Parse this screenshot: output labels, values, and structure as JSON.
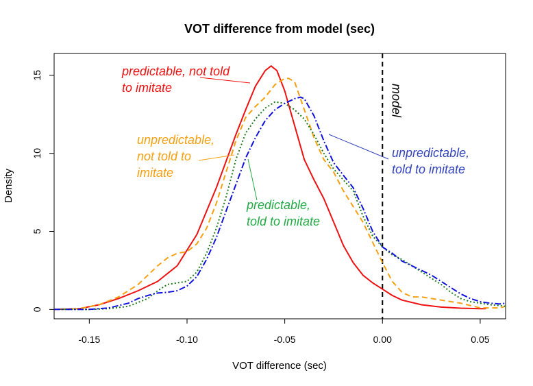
{
  "chart_data": {
    "type": "line",
    "title": "VOT difference from model (sec)",
    "xlabel": "VOT difference (sec)",
    "ylabel": "Density",
    "xlim": [
      -0.168,
      0.063
    ],
    "ylim": [
      -0.6,
      16.4
    ],
    "xticks": [
      -0.15,
      -0.1,
      -0.05,
      0.0,
      0.05
    ],
    "xtick_labels": [
      "-0.15",
      "-0.10",
      "-0.05",
      "0.00",
      "0.05"
    ],
    "yticks": [
      0,
      5,
      10,
      15
    ],
    "ytick_labels": [
      "0",
      "5",
      "10",
      "15"
    ],
    "grid": false,
    "reference_line": {
      "x": 0.0,
      "label": "model",
      "color": "#000000"
    },
    "series": [
      {
        "name": "predictable, not told to imitate",
        "color": "#ee1111",
        "dash": "",
        "label_lines": [
          "predictable,  not told",
          "to imitate"
        ],
        "x": [
          -0.168,
          -0.155,
          -0.145,
          -0.135,
          -0.125,
          -0.115,
          -0.105,
          -0.095,
          -0.085,
          -0.075,
          -0.07,
          -0.065,
          -0.06,
          -0.057,
          -0.054,
          -0.05,
          -0.045,
          -0.04,
          -0.035,
          -0.03,
          -0.025,
          -0.02,
          -0.015,
          -0.01,
          -0.005,
          0.0,
          0.005,
          0.01,
          0.02,
          0.03,
          0.04,
          0.05,
          0.053
        ],
        "y": [
          0.0,
          0.05,
          0.3,
          0.7,
          1.2,
          1.8,
          2.8,
          4.8,
          7.8,
          11.2,
          12.8,
          14.3,
          15.3,
          15.6,
          15.3,
          14.0,
          11.8,
          9.6,
          8.3,
          7.1,
          5.6,
          4.1,
          3.0,
          2.2,
          1.7,
          1.3,
          0.9,
          0.6,
          0.3,
          0.15,
          0.08,
          0.05,
          0.05
        ]
      },
      {
        "name": "unpredictable, not told to imitate",
        "color": "#f5a010",
        "dash": "8,5",
        "label_lines": [
          "unpredictable,",
          "not told to",
          "imitate"
        ],
        "x": [
          -0.168,
          -0.155,
          -0.145,
          -0.135,
          -0.125,
          -0.115,
          -0.11,
          -0.105,
          -0.1,
          -0.095,
          -0.09,
          -0.085,
          -0.08,
          -0.075,
          -0.07,
          -0.065,
          -0.06,
          -0.055,
          -0.05,
          -0.048,
          -0.045,
          -0.04,
          -0.035,
          -0.03,
          -0.025,
          -0.02,
          -0.015,
          -0.01,
          -0.005,
          0.0,
          0.005,
          0.01,
          0.015,
          0.02,
          0.025,
          0.03,
          0.035,
          0.04,
          0.045,
          0.05,
          0.055,
          0.06,
          0.063
        ],
        "y": [
          0.0,
          0.05,
          0.3,
          0.8,
          1.6,
          2.8,
          3.3,
          3.6,
          3.7,
          4.2,
          5.2,
          6.8,
          8.8,
          10.8,
          12.3,
          13.0,
          13.6,
          14.4,
          14.8,
          14.8,
          14.6,
          12.8,
          11.0,
          9.6,
          8.8,
          7.6,
          6.6,
          5.6,
          4.3,
          3.0,
          1.8,
          1.1,
          0.8,
          0.8,
          0.7,
          0.6,
          0.5,
          0.4,
          0.25,
          0.1,
          0.1,
          0.1,
          0.2
        ]
      },
      {
        "name": "predictable, told to imitate",
        "color": "#1a7a1a",
        "dash": "2,3",
        "label_lines": [
          "predictable,",
          "told to imitate"
        ],
        "label_color": "#22aa44",
        "x": [
          -0.168,
          -0.15,
          -0.14,
          -0.13,
          -0.12,
          -0.115,
          -0.11,
          -0.105,
          -0.1,
          -0.095,
          -0.09,
          -0.085,
          -0.08,
          -0.075,
          -0.07,
          -0.065,
          -0.06,
          -0.055,
          -0.05,
          -0.045,
          -0.04,
          -0.035,
          -0.03,
          -0.025,
          -0.02,
          -0.015,
          -0.01,
          -0.005,
          0.0,
          0.005,
          0.01,
          0.015,
          0.02,
          0.025,
          0.03,
          0.035,
          0.04,
          0.045,
          0.05,
          0.055,
          0.06,
          0.063
        ],
        "y": [
          0.0,
          0.0,
          0.05,
          0.2,
          0.7,
          1.2,
          1.6,
          1.7,
          1.8,
          2.4,
          3.6,
          5.2,
          7.2,
          9.6,
          11.3,
          12.2,
          12.9,
          13.3,
          13.2,
          12.8,
          12.2,
          11.2,
          10.0,
          9.0,
          8.3,
          7.6,
          6.0,
          4.7,
          4.0,
          3.5,
          3.2,
          2.8,
          2.4,
          2.0,
          1.6,
          1.1,
          0.7,
          0.5,
          0.4,
          0.3,
          0.25,
          0.2
        ]
      },
      {
        "name": "unpredictable, told to imitate",
        "color": "#1111dd",
        "dash": "9,3,2,3",
        "label_lines": [
          "unpredictable,",
          "told to imitate"
        ],
        "label_color": "#3344bb",
        "x": [
          -0.168,
          -0.15,
          -0.14,
          -0.13,
          -0.125,
          -0.12,
          -0.115,
          -0.11,
          -0.105,
          -0.1,
          -0.095,
          -0.09,
          -0.085,
          -0.08,
          -0.075,
          -0.07,
          -0.065,
          -0.06,
          -0.055,
          -0.05,
          -0.045,
          -0.042,
          -0.04,
          -0.035,
          -0.03,
          -0.025,
          -0.02,
          -0.015,
          -0.01,
          -0.005,
          0.0,
          0.005,
          0.01,
          0.015,
          0.02,
          0.025,
          0.03,
          0.035,
          0.04,
          0.045,
          0.05,
          0.055,
          0.06,
          0.063
        ],
        "y": [
          0.0,
          0.0,
          0.1,
          0.4,
          0.7,
          0.9,
          1.05,
          1.1,
          1.2,
          1.5,
          2.1,
          3.2,
          4.6,
          6.3,
          8.0,
          9.7,
          11.0,
          12.1,
          12.8,
          13.2,
          13.5,
          13.6,
          13.5,
          12.4,
          10.8,
          9.4,
          8.6,
          7.8,
          6.5,
          5.0,
          4.0,
          3.6,
          3.1,
          2.8,
          2.5,
          2.2,
          1.8,
          1.4,
          1.0,
          0.7,
          0.5,
          0.4,
          0.35,
          0.4
        ]
      }
    ]
  }
}
